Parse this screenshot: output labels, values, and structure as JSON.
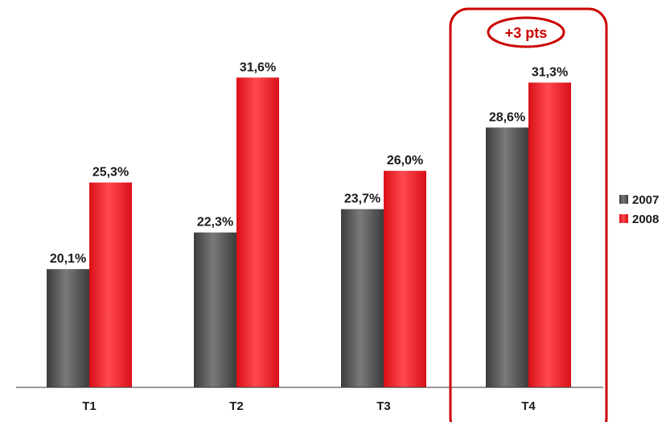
{
  "chart_data": {
    "type": "bar",
    "categories": [
      "T1",
      "T2",
      "T3",
      "T4"
    ],
    "series": [
      {
        "name": "2007",
        "values": [
          20.1,
          22.3,
          23.7,
          28.6
        ],
        "labels": [
          "20,1%",
          "22,3%",
          "23,7%",
          "28,6%"
        ],
        "color": "#5a5a5a"
      },
      {
        "name": "2008",
        "values": [
          25.3,
          31.6,
          26.0,
          31.3
        ],
        "labels": [
          "25,3%",
          "31,6%",
          "26,0%",
          "31,3%"
        ],
        "color": "#ee1c25"
      }
    ],
    "ylim": [
      13.0,
      35.0
    ],
    "grid": false,
    "legend_position": "right",
    "annotation": {
      "text": "+3 pts",
      "category": "T4",
      "color": "#cc0000"
    }
  }
}
